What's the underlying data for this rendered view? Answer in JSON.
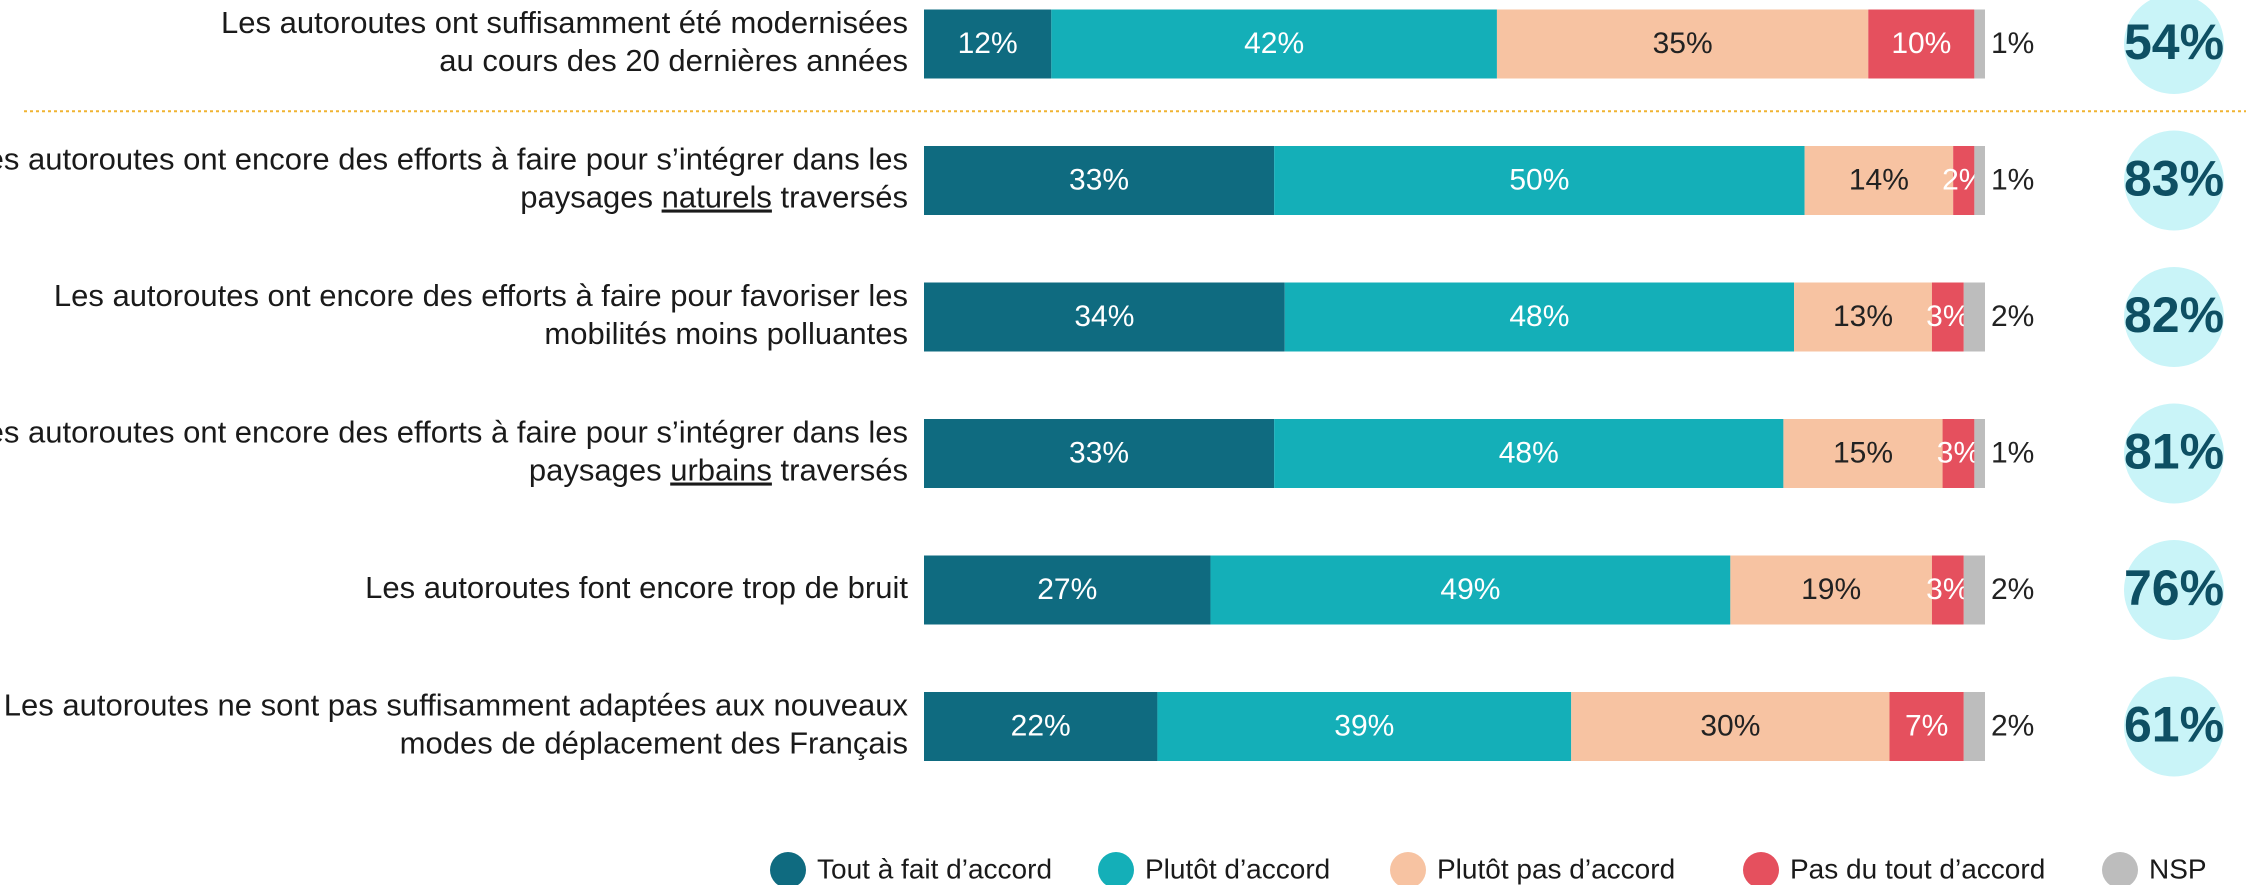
{
  "chart_data": {
    "type": "bar",
    "orientation": "horizontal",
    "stacked": true,
    "categories": [
      [
        "Les autoroutes ont suffisamment été modernisées",
        "au cours des 20 dernières années"
      ],
      [
        "Les autoroutes ont encore des efforts à faire pour s’intégrer dans les",
        "paysages naturels traversés"
      ],
      [
        "Les autoroutes ont encore des efforts à faire pour favoriser les",
        "mobilités moins polluantes"
      ],
      [
        "Les autoroutes ont encore des efforts à faire pour s’intégrer dans les",
        "paysages urbains traversés"
      ],
      [
        "Les autoroutes font encore trop de bruit"
      ],
      [
        "Les autoroutes ne sont pas suffisamment adaptées aux nouveaux",
        "modes de déplacement des Français"
      ]
    ],
    "underline": [
      null,
      "naturels",
      null,
      "urbains",
      null,
      null
    ],
    "xlim": [
      0,
      100
    ],
    "series": [
      {
        "name": "Tout à fait d’accord",
        "color": "#0f6b80",
        "label_color": "#ffffff",
        "values": [
          12,
          33,
          34,
          33,
          27,
          22
        ],
        "value_labels": [
          "12%",
          "33%",
          "34%",
          "33%",
          "27%",
          "22%"
        ]
      },
      {
        "name": "Plutôt d’accord",
        "color": "#14afb8",
        "label_color": "#ffffff",
        "values": [
          42,
          50,
          48,
          48,
          49,
          39
        ],
        "value_labels": [
          "42%",
          "50%",
          "48%",
          "48%",
          "49%",
          "39%"
        ]
      },
      {
        "name": "Plutôt pas d’accord",
        "color": "#f7c3a2",
        "label_color": "#222222",
        "values": [
          35,
          14,
          13,
          15,
          19,
          30
        ],
        "value_labels": [
          "35%",
          "14%",
          "13%",
          "15%",
          "19%",
          "30%"
        ]
      },
      {
        "name": "Pas du tout d’accord",
        "color": "#e5505e",
        "label_color": "#ffffff",
        "values": [
          10,
          2,
          3,
          3,
          3,
          7
        ],
        "value_labels": [
          "10%",
          "2%",
          "3%",
          "3%",
          "3%",
          "7%"
        ]
      },
      {
        "name": "NSP",
        "color": "#bdbdbd",
        "label_color": "#222222",
        "labels_outside": true,
        "values": [
          1,
          1,
          2,
          1,
          2,
          2
        ],
        "value_labels": [
          "1%",
          "1%",
          "2%",
          "1%",
          "2%",
          "2%"
        ]
      }
    ],
    "totals": {
      "color": "#c9f4f8",
      "label_color": "#0e4f63",
      "values": [
        54,
        83,
        82,
        81,
        76,
        61
      ],
      "value_labels": [
        "54%",
        "83%",
        "82%",
        "81%",
        "76%",
        "61%"
      ]
    }
  }
}
